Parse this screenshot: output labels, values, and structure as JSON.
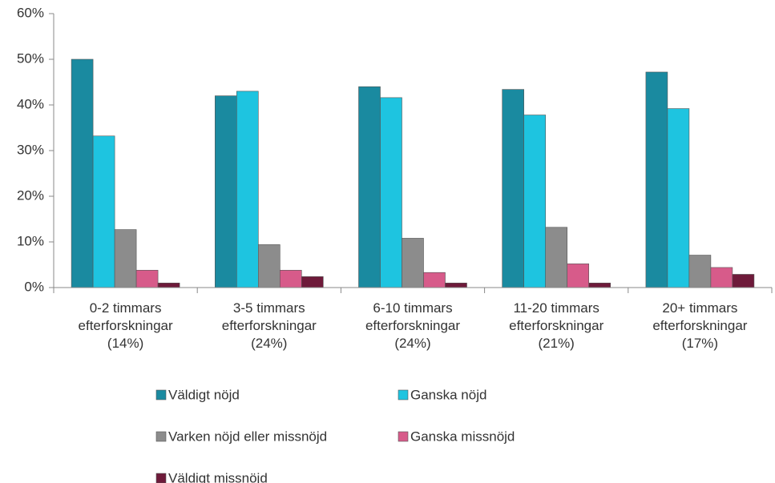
{
  "chart_data": {
    "type": "bar",
    "categories": [
      "0-2 timmars\nefterforskningar\n(14%)",
      "3-5 timmars\nefterforskningar\n(24%)",
      "6-10 timmars\nefterforskningar\n(24%)",
      "11-20 timmars\nefterforskningar\n(21%)",
      "20+ timmars\nefterforskningar\n(17%)"
    ],
    "series": [
      {
        "name": "Väldigt nöjd",
        "color": "#1a8aa0",
        "values": [
          50,
          42,
          44,
          43.4,
          47.2
        ]
      },
      {
        "name": "Ganska nöjd",
        "color": "#1ec4e0",
        "values": [
          33.2,
          43,
          41.6,
          37.8,
          39.2
        ]
      },
      {
        "name": "Varken nöjd eller missnöjd",
        "color": "#8c8c8c",
        "values": [
          12.7,
          9.4,
          10.8,
          13.2,
          7.1
        ]
      },
      {
        "name": "Ganska missnöjd",
        "color": "#d75b8a",
        "values": [
          3.8,
          3.8,
          3.3,
          5.2,
          4.4
        ]
      },
      {
        "name": "Väldigt missnöjd",
        "color": "#6e1a3a",
        "values": [
          1.0,
          2.4,
          1.0,
          1.0,
          2.9
        ]
      }
    ],
    "ylim": [
      0,
      60
    ],
    "yticks": [
      {
        "value": 0,
        "label": "0%"
      },
      {
        "value": 10,
        "label": "10%"
      },
      {
        "value": 20,
        "label": "20%"
      },
      {
        "value": 30,
        "label": "30%"
      },
      {
        "value": 40,
        "label": "40%"
      },
      {
        "value": 50,
        "label": "50%"
      },
      {
        "value": 60,
        "label": "60%"
      }
    ],
    "grid": false
  }
}
